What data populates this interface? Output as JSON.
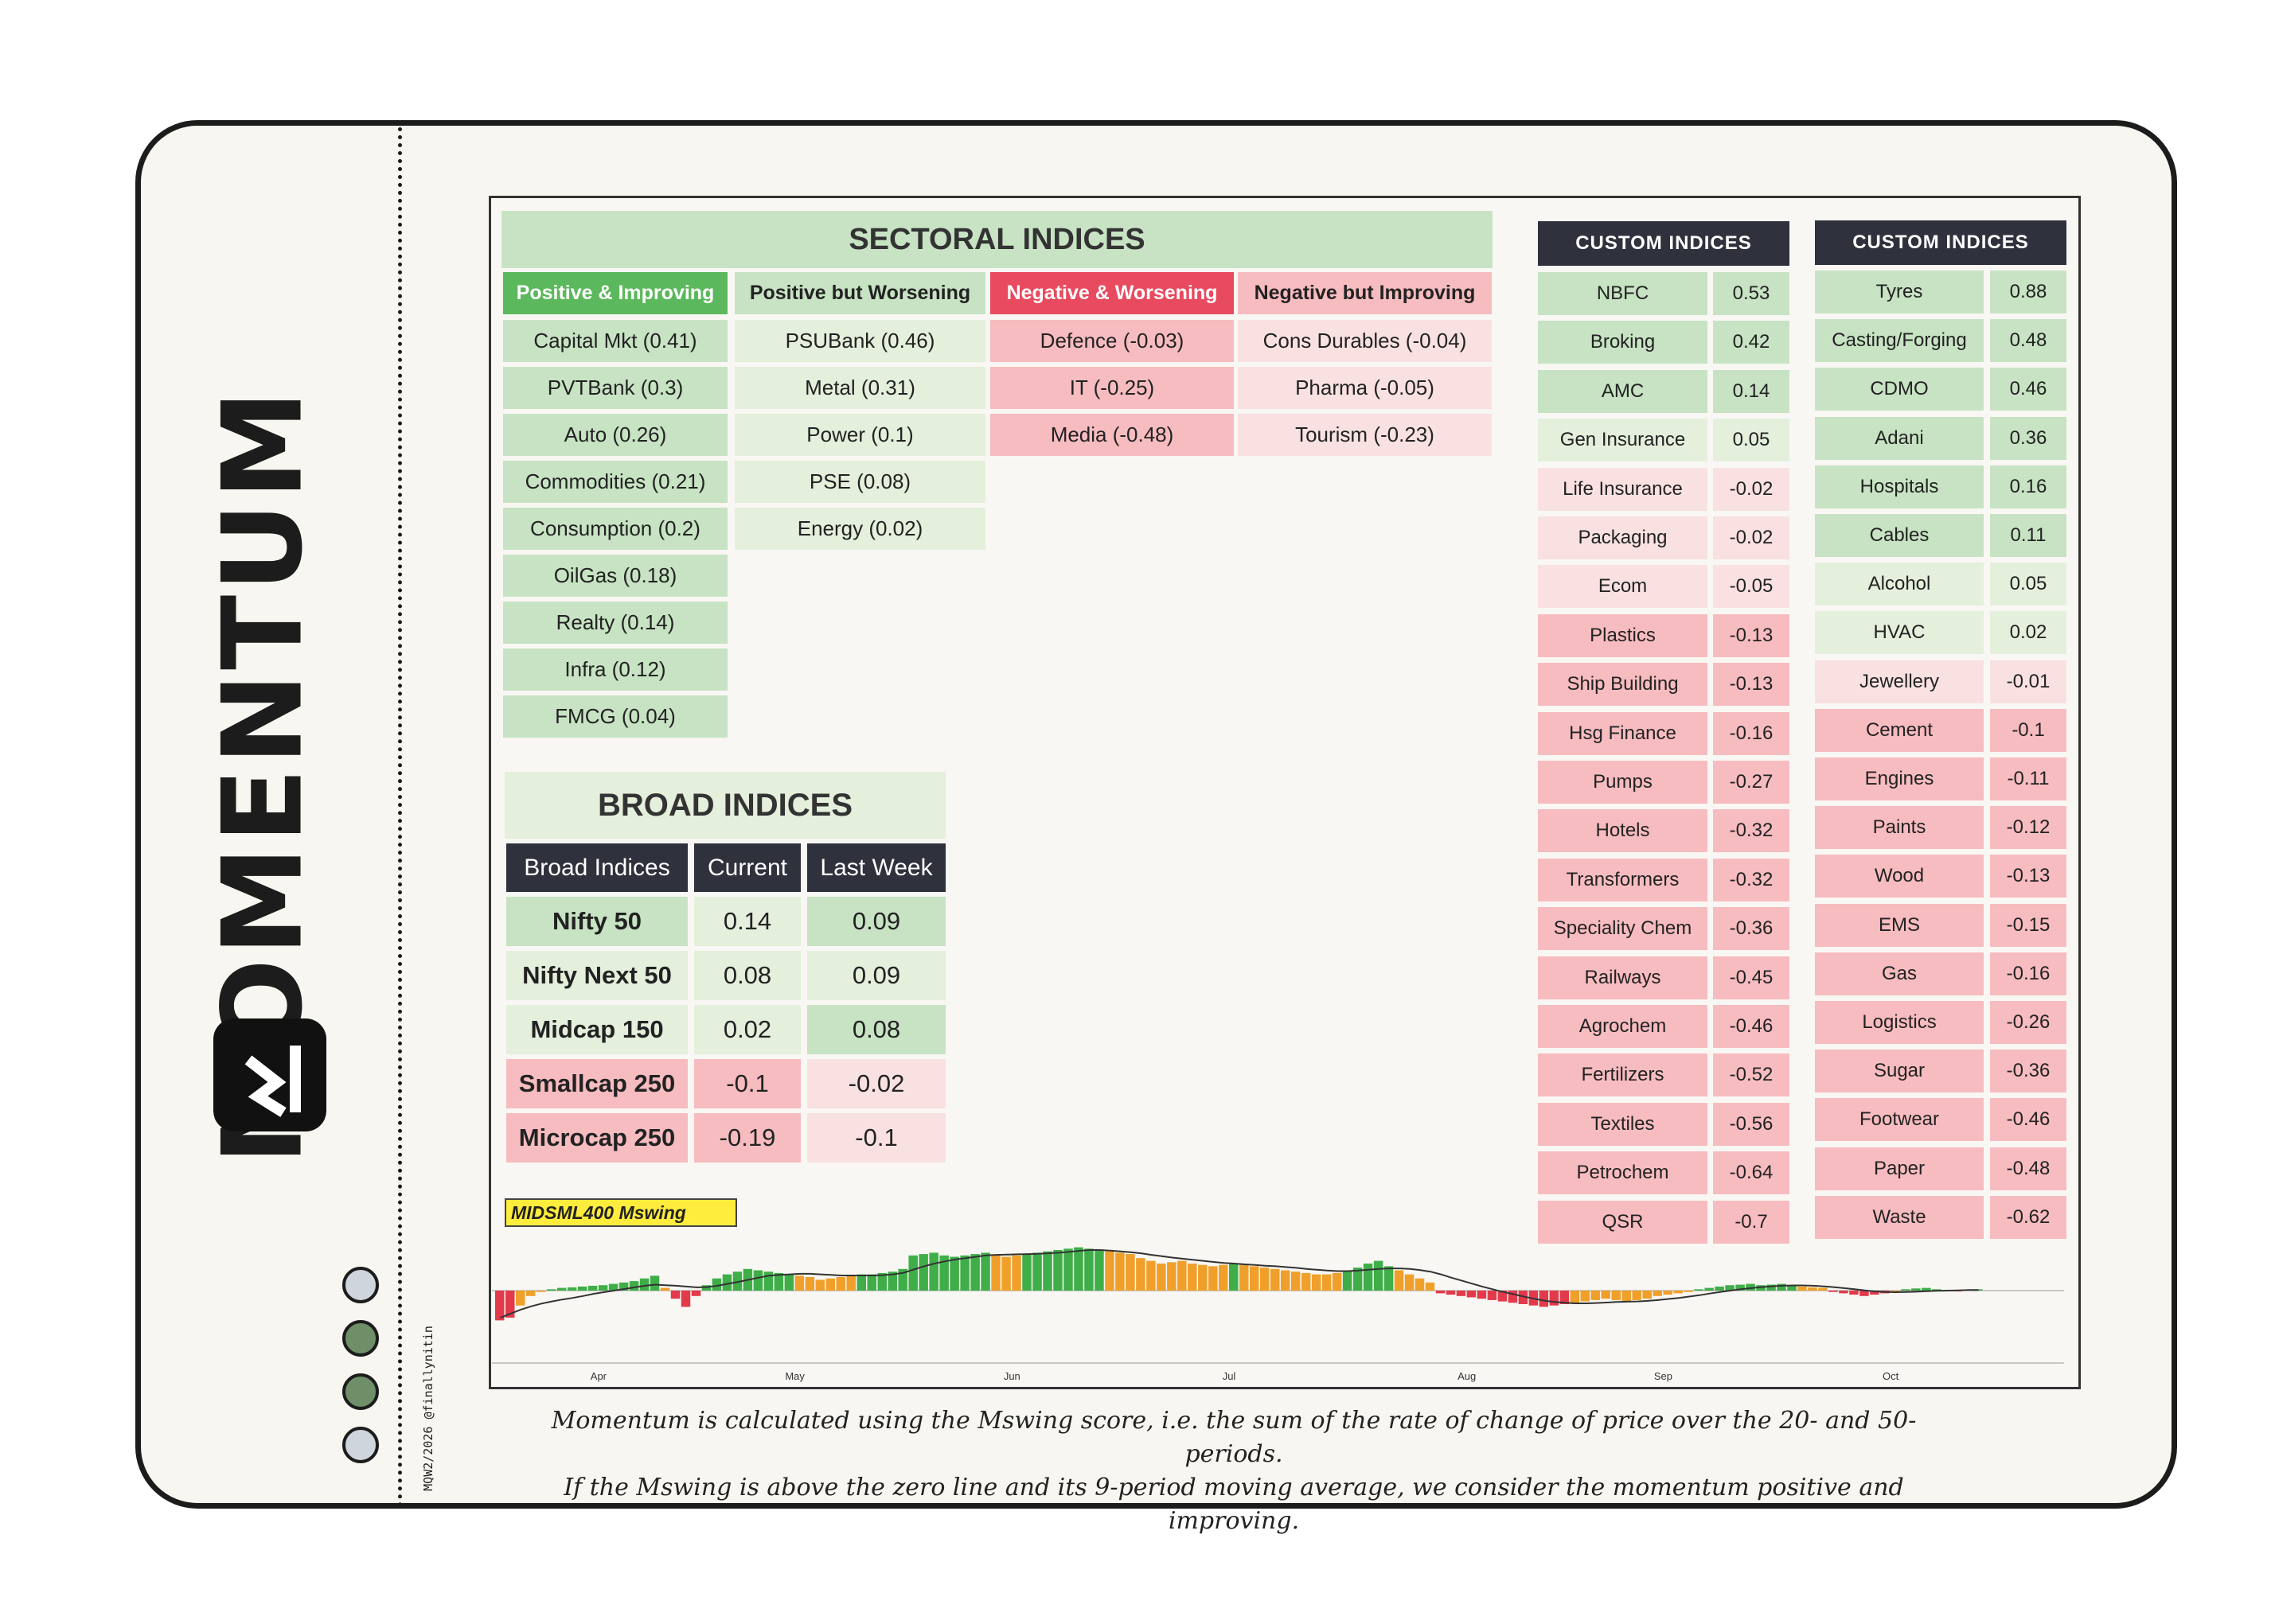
{
  "brand": "MOMENTUM",
  "credit": "MQW2/2026 @finallynitin",
  "colors": {
    "green_strong": "#5cb85c",
    "green": "#c7e3c3",
    "green_light": "#e4efdc",
    "red_strong": "#e84a5f",
    "red": "#f7bcc0",
    "red_light": "#f9e1e1",
    "header_dark": "#2f323d"
  },
  "sectoral": {
    "title": "SECTORAL INDICES",
    "columns": [
      {
        "header": "Positive & Improving",
        "items": [
          "Capital Mkt (0.41)",
          "PVTBank (0.3)",
          "Auto (0.26)",
          "Commodities (0.21)",
          "Consumption (0.2)",
          "OilGas (0.18)",
          "Realty (0.14)",
          "Infra (0.12)",
          "FMCG (0.04)"
        ]
      },
      {
        "header": "Positive but Worsening",
        "items": [
          "PSUBank (0.46)",
          "Metal (0.31)",
          "Power (0.1)",
          "PSE (0.08)",
          "Energy (0.02)"
        ]
      },
      {
        "header": "Negative & Worsening",
        "items": [
          "Defence (-0.03)",
          "IT (-0.25)",
          "Media (-0.48)"
        ]
      },
      {
        "header": "Negative but Improving",
        "items": [
          "Cons Durables (-0.04)",
          "Pharma (-0.05)",
          "Tourism (-0.23)"
        ]
      }
    ]
  },
  "broad": {
    "title": "BROAD INDICES",
    "headers": [
      "Broad Indices",
      "Current",
      "Last Week"
    ],
    "rows": [
      {
        "name": "Nifty 50",
        "current": "0.14",
        "last": "0.09"
      },
      {
        "name": "Nifty Next 50",
        "current": "0.08",
        "last": "0.09"
      },
      {
        "name": "Midcap 150",
        "current": "0.02",
        "last": "0.08"
      },
      {
        "name": "Smallcap 250",
        "current": "-0.1",
        "last": "-0.02"
      },
      {
        "name": "Microcap 250",
        "current": "-0.19",
        "last": "-0.1"
      }
    ]
  },
  "custom1": {
    "title": "CUSTOM INDICES",
    "rows": [
      {
        "name": "NBFC",
        "value": "0.53"
      },
      {
        "name": "Broking",
        "value": "0.42"
      },
      {
        "name": "AMC",
        "value": "0.14"
      },
      {
        "name": "Gen Insurance",
        "value": "0.05"
      },
      {
        "name": "Life Insurance",
        "value": "-0.02"
      },
      {
        "name": "Packaging",
        "value": "-0.02"
      },
      {
        "name": "Ecom",
        "value": "-0.05"
      },
      {
        "name": "Plastics",
        "value": "-0.13"
      },
      {
        "name": "Ship Building",
        "value": "-0.13"
      },
      {
        "name": "Hsg Finance",
        "value": "-0.16"
      },
      {
        "name": "Pumps",
        "value": "-0.27"
      },
      {
        "name": "Hotels",
        "value": "-0.32"
      },
      {
        "name": "Transformers",
        "value": "-0.32"
      },
      {
        "name": "Speciality Chem",
        "value": "-0.36"
      },
      {
        "name": "Railways",
        "value": "-0.45"
      },
      {
        "name": "Agrochem",
        "value": "-0.46"
      },
      {
        "name": "Fertilizers",
        "value": "-0.52"
      },
      {
        "name": "Textiles",
        "value": "-0.56"
      },
      {
        "name": "Petrochem",
        "value": "-0.64"
      },
      {
        "name": "QSR",
        "value": "-0.7"
      }
    ]
  },
  "custom2": {
    "title": "CUSTOM INDICES",
    "rows": [
      {
        "name": "Tyres",
        "value": "0.88"
      },
      {
        "name": "Casting/Forging",
        "value": "0.48"
      },
      {
        "name": "CDMO",
        "value": "0.46"
      },
      {
        "name": "Adani",
        "value": "0.36"
      },
      {
        "name": "Hospitals",
        "value": "0.16"
      },
      {
        "name": "Cables",
        "value": "0.11"
      },
      {
        "name": "Alcohol",
        "value": "0.05"
      },
      {
        "name": "HVAC",
        "value": "0.02"
      },
      {
        "name": "Jewellery",
        "value": "-0.01"
      },
      {
        "name": "Cement",
        "value": "-0.1"
      },
      {
        "name": "Engines",
        "value": "-0.11"
      },
      {
        "name": "Paints",
        "value": "-0.12"
      },
      {
        "name": "Wood",
        "value": "-0.13"
      },
      {
        "name": "EMS",
        "value": "-0.15"
      },
      {
        "name": "Gas",
        "value": "-0.16"
      },
      {
        "name": "Logistics",
        "value": "-0.26"
      },
      {
        "name": "Sugar",
        "value": "-0.36"
      },
      {
        "name": "Footwear",
        "value": "-0.46"
      },
      {
        "name": "Paper",
        "value": "-0.48"
      },
      {
        "name": "Waste",
        "value": "-0.62"
      }
    ]
  },
  "chart_label": "MIDSML400 Mswing",
  "chart_data": {
    "type": "bar",
    "title": "MIDSML400 Mswing",
    "x_tick_labels": [
      "Apr",
      "May",
      "Jun",
      "Jul",
      "Aug",
      "Sep",
      "Oct"
    ],
    "x_tick_index": [
      10,
      29,
      50,
      71,
      94,
      113,
      135
    ],
    "values": [
      -1.1,
      -1.0,
      -0.55,
      -0.2,
      -0.05,
      0.05,
      0.1,
      0.12,
      0.15,
      0.18,
      0.2,
      0.25,
      0.3,
      0.35,
      0.45,
      0.55,
      0.1,
      -0.3,
      -0.6,
      -0.2,
      0.2,
      0.45,
      0.6,
      0.7,
      0.8,
      0.75,
      0.7,
      0.65,
      0.6,
      0.55,
      0.5,
      0.4,
      0.45,
      0.5,
      0.55,
      0.6,
      0.6,
      0.65,
      0.7,
      0.8,
      1.3,
      1.35,
      1.4,
      1.3,
      1.25,
      1.3,
      1.35,
      1.4,
      1.3,
      1.25,
      1.3,
      1.35,
      1.4,
      1.45,
      1.5,
      1.55,
      1.6,
      1.55,
      1.5,
      1.45,
      1.4,
      1.35,
      1.2,
      1.1,
      1.0,
      1.05,
      1.1,
      1.0,
      0.95,
      0.9,
      0.95,
      1.0,
      0.95,
      0.9,
      0.85,
      0.8,
      0.75,
      0.7,
      0.65,
      0.6,
      0.6,
      0.65,
      0.75,
      0.85,
      1.0,
      1.1,
      0.9,
      0.75,
      0.6,
      0.45,
      0.3,
      -0.1,
      -0.15,
      -0.2,
      -0.25,
      -0.3,
      -0.35,
      -0.4,
      -0.45,
      -0.5,
      -0.55,
      -0.6,
      -0.55,
      -0.5,
      -0.45,
      -0.4,
      -0.35,
      -0.3,
      -0.35,
      -0.4,
      -0.35,
      -0.3,
      -0.2,
      -0.15,
      -0.1,
      -0.05,
      0.05,
      0.1,
      0.15,
      0.2,
      0.22,
      0.25,
      0.2,
      0.22,
      0.25,
      0.2,
      0.15,
      0.12,
      0.1,
      -0.05,
      -0.1,
      -0.15,
      -0.2,
      -0.15,
      -0.1,
      -0.05,
      0.05,
      0.08,
      0.1,
      0.05,
      0.02,
      -0.02,
      0.03,
      0.05
    ],
    "ma9": [
      -1.0,
      -0.85,
      -0.7,
      -0.58,
      -0.48,
      -0.4,
      -0.33,
      -0.27,
      -0.2,
      -0.12,
      -0.06,
      0.0,
      0.06,
      0.12,
      0.18,
      0.22,
      0.2,
      0.18,
      0.15,
      0.12,
      0.13,
      0.18,
      0.25,
      0.32,
      0.4,
      0.48,
      0.55,
      0.58,
      0.6,
      0.62,
      0.62,
      0.6,
      0.58,
      0.56,
      0.56,
      0.56,
      0.56,
      0.57,
      0.6,
      0.66,
      0.78,
      0.9,
      1.0,
      1.08,
      1.15,
      1.2,
      1.25,
      1.3,
      1.32,
      1.33,
      1.34,
      1.35,
      1.36,
      1.38,
      1.4,
      1.43,
      1.47,
      1.5,
      1.5,
      1.48,
      1.45,
      1.42,
      1.38,
      1.32,
      1.27,
      1.22,
      1.18,
      1.14,
      1.1,
      1.06,
      1.02,
      1.0,
      0.97,
      0.95,
      0.92,
      0.9,
      0.87,
      0.84,
      0.8,
      0.77,
      0.74,
      0.72,
      0.72,
      0.74,
      0.77,
      0.8,
      0.82,
      0.82,
      0.8,
      0.76,
      0.7,
      0.6,
      0.48,
      0.37,
      0.26,
      0.15,
      0.05,
      -0.05,
      -0.13,
      -0.22,
      -0.3,
      -0.37,
      -0.42,
      -0.45,
      -0.47,
      -0.47,
      -0.46,
      -0.44,
      -0.42,
      -0.41,
      -0.4,
      -0.38,
      -0.35,
      -0.31,
      -0.27,
      -0.22,
      -0.17,
      -0.11,
      -0.05,
      0.0,
      0.05,
      0.09,
      0.13,
      0.16,
      0.18,
      0.19,
      0.19,
      0.18,
      0.16,
      0.13,
      0.09,
      0.05,
      0.01,
      -0.03,
      -0.05,
      -0.06,
      -0.05,
      -0.04,
      -0.02,
      -0.01,
      0.0,
      0.01,
      0.02,
      0.02
    ]
  },
  "footer": {
    "line1": "Momentum is calculated using the Mswing score, i.e. the sum of the rate of change of price over the 20- and 50-periods.",
    "line2": "If the Mswing is above the zero line and its 9-period moving average, we consider the momentum positive and improving."
  }
}
